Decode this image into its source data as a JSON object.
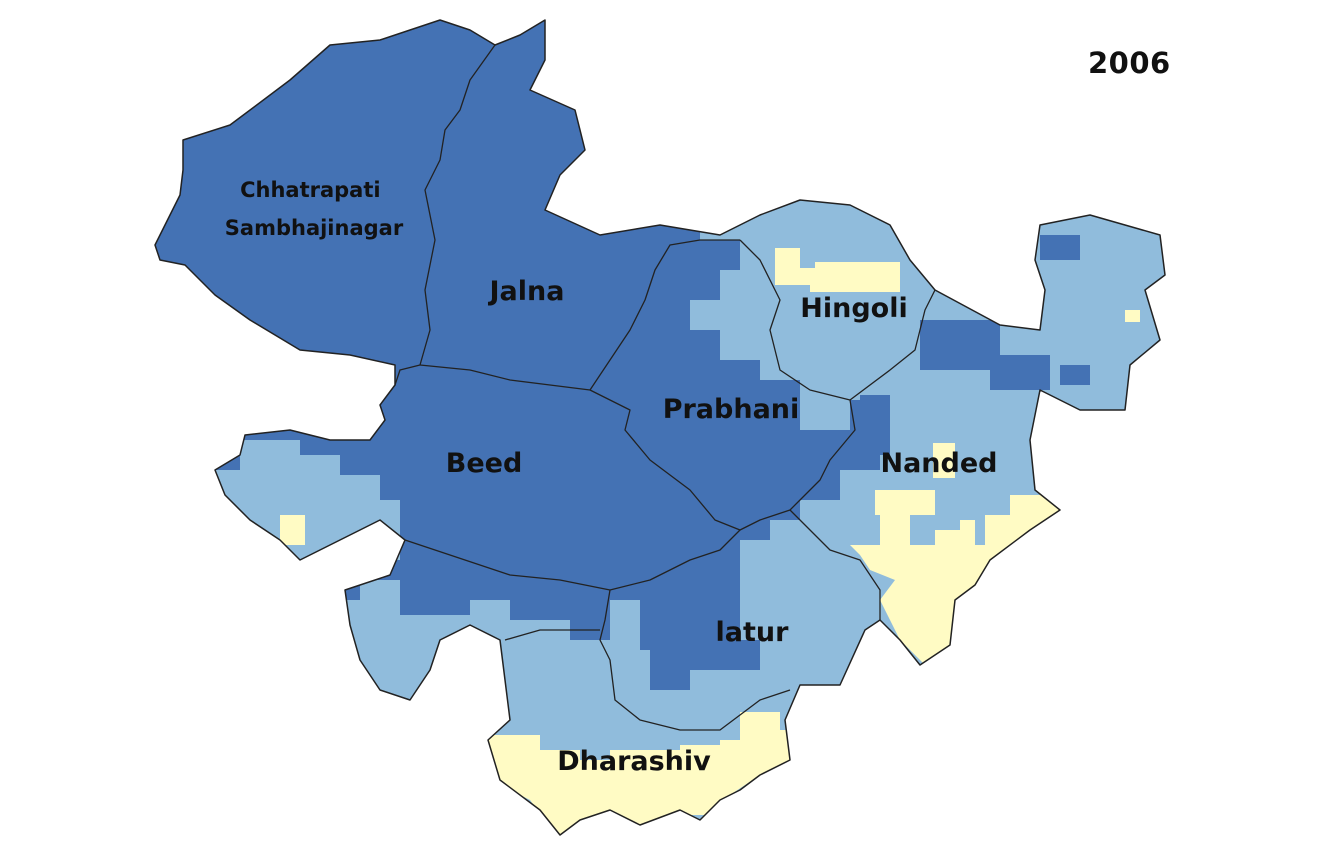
{
  "year": "2006",
  "colors": {
    "dark": "#4472b4",
    "light": "#90bcdc",
    "pale": "#fffbc4",
    "border": "#222222"
  },
  "districts": [
    {
      "id": "chhatrapati-sambhajinagar",
      "label_lines": [
        "Chhatrapati",
        "Sambhajinagar"
      ]
    },
    {
      "id": "jalna",
      "label_lines": [
        "Jalna"
      ]
    },
    {
      "id": "hingoli",
      "label_lines": [
        "Hingoli"
      ]
    },
    {
      "id": "prabhani",
      "label_lines": [
        "Prabhani"
      ]
    },
    {
      "id": "beed",
      "label_lines": [
        "Beed"
      ]
    },
    {
      "id": "nanded",
      "label_lines": [
        "Nanded"
      ]
    },
    {
      "id": "latur",
      "label_lines": [
        "latur"
      ]
    },
    {
      "id": "dharashiv",
      "label_lines": [
        "Dharashiv"
      ]
    }
  ]
}
